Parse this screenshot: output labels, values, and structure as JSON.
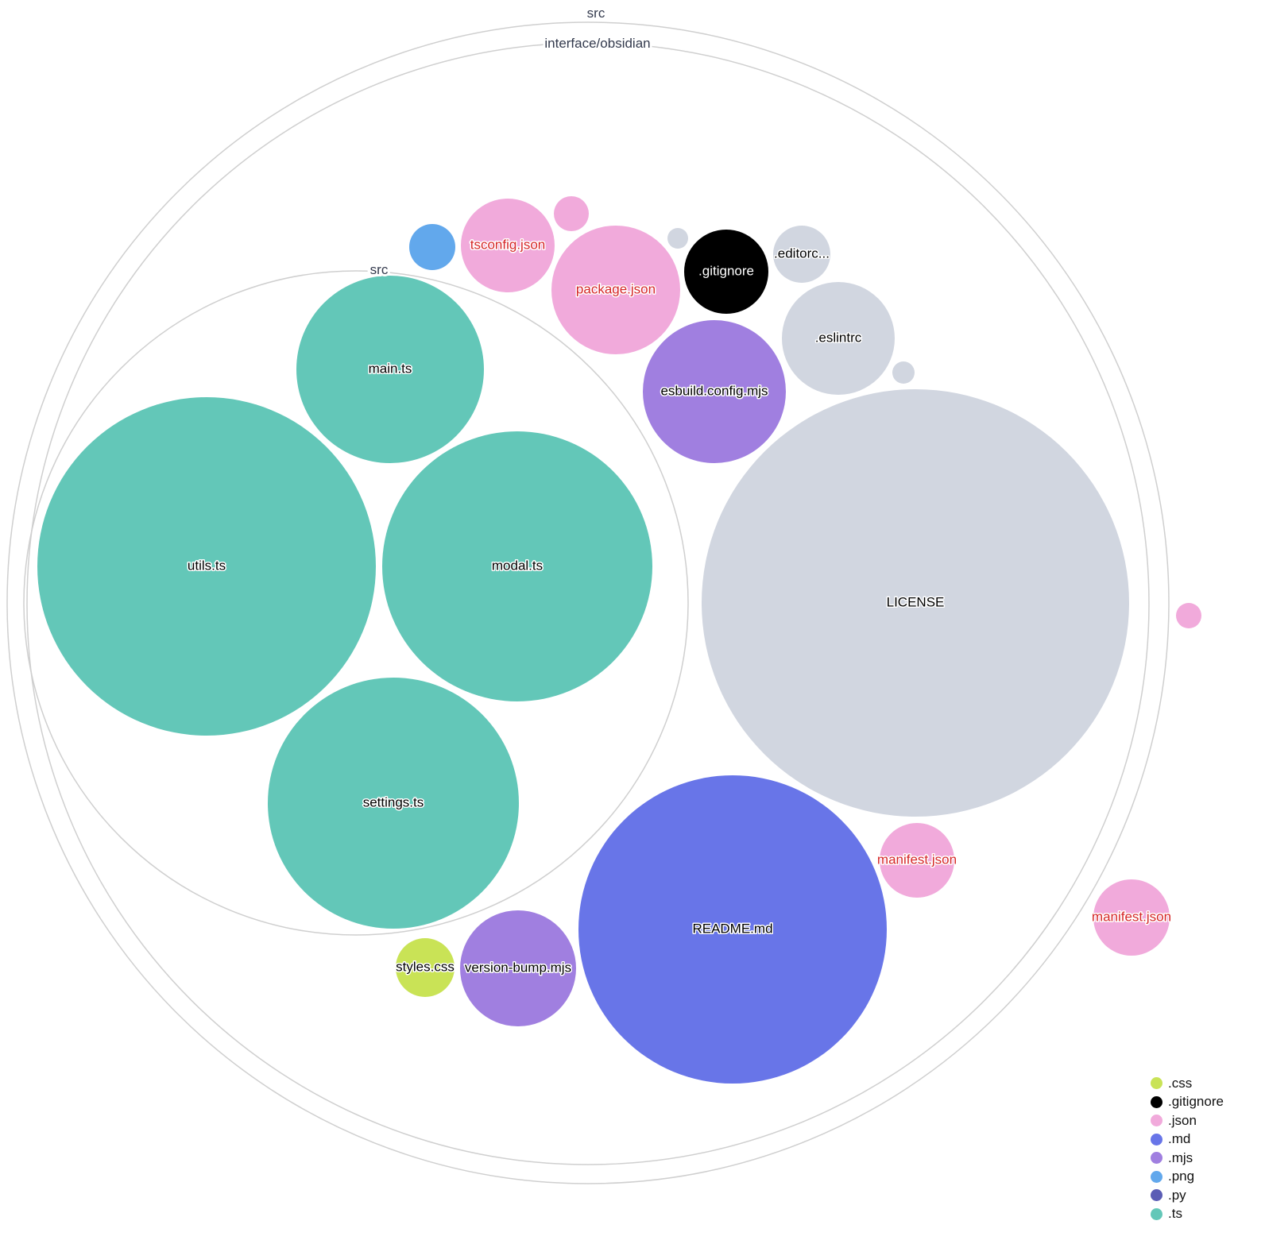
{
  "directories": [
    {
      "label": "src"
    },
    {
      "label": "interface/obsidian"
    },
    {
      "label": "src"
    }
  ],
  "colors": {
    ".css": "#c9e356",
    ".gitignore": "#000000",
    ".json": "#f1aadb",
    ".md": "#6875e8",
    ".mjs": "#a07fe0",
    ".png": "#62a8ec",
    ".py": "#5b5db5",
    ".ts": "#63c7b8",
    "other": "#d1d6e0",
    "highlight_label": "#d62728"
  },
  "files": [
    {
      "label": "main.ts",
      "ext": ".ts"
    },
    {
      "label": "utils.ts",
      "ext": ".ts"
    },
    {
      "label": "modal.ts",
      "ext": ".ts"
    },
    {
      "label": "settings.ts",
      "ext": ".ts"
    },
    {
      "label": "LICENSE",
      "ext": "other"
    },
    {
      "label": "README.md",
      "ext": ".md"
    },
    {
      "label": "esbuild.config.mjs",
      "ext": ".mjs"
    },
    {
      "label": ".eslintrc",
      "ext": "other"
    },
    {
      "label": "package.json",
      "ext": ".json",
      "highlight": true
    },
    {
      "label": "tsconfig.json",
      "ext": ".json",
      "highlight": true
    },
    {
      "label": "",
      "ext": ".png"
    },
    {
      "label": "",
      "ext": ".json"
    },
    {
      "label": "",
      "ext": "other"
    },
    {
      "label": ".gitignore",
      "ext": ".gitignore"
    },
    {
      "label": ".editorc...",
      "ext": "other"
    },
    {
      "label": "",
      "ext": "other"
    },
    {
      "label": "manifest.json",
      "ext": ".json",
      "highlight": true
    },
    {
      "label": "manifest.json",
      "ext": ".json",
      "highlight": true
    },
    {
      "label": "",
      "ext": ".json"
    },
    {
      "label": "version-bump.mjs",
      "ext": ".mjs"
    },
    {
      "label": "styles.css",
      "ext": ".css"
    }
  ],
  "legend": [
    ".css",
    ".gitignore",
    ".json",
    ".md",
    ".mjs",
    ".png",
    ".py",
    ".ts"
  ]
}
